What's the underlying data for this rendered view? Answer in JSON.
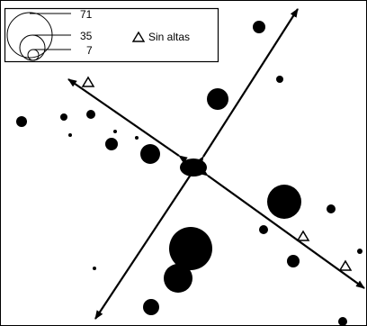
{
  "legend": {
    "circle_values": [
      "71",
      "35",
      "7"
    ],
    "triangle_label": "Sin altas"
  },
  "colors": {
    "ink": "#000000",
    "background": "#ffffff"
  }
}
